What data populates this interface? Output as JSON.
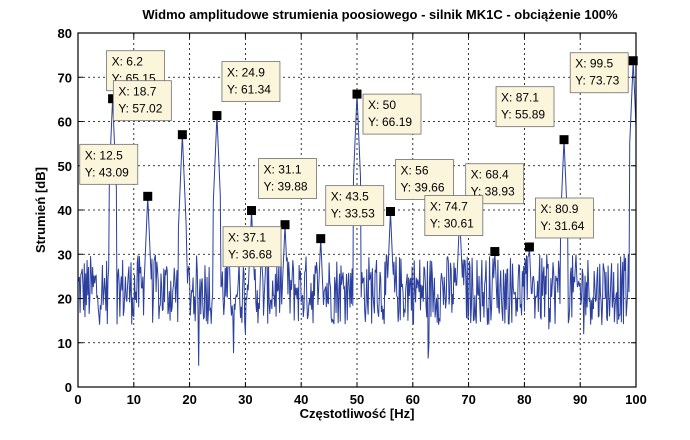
{
  "chart_data": {
    "type": "line",
    "title": "Widmo amplitudowe strumienia poosiowego - silnik MK1C - obciążenie 100%",
    "xlabel": "Częstotliwość [Hz]",
    "ylabel": "Strumień [dB]",
    "xlim": [
      0,
      100
    ],
    "ylim": [
      0,
      80
    ],
    "xticks": [
      0,
      10,
      20,
      30,
      40,
      50,
      60,
      70,
      80,
      90,
      100
    ],
    "yticks": [
      0,
      10,
      20,
      30,
      40,
      50,
      60,
      70,
      80
    ],
    "grid": true,
    "line_color": "#2b3f9e",
    "peaks": [
      {
        "x": 6.2,
        "y": 65.15,
        "xtext": "X: 6.2",
        "ytext": "Y: 65.15"
      },
      {
        "x": 12.5,
        "y": 43.09,
        "xtext": "X: 12.5",
        "ytext": "Y: 43.09"
      },
      {
        "x": 18.7,
        "y": 57.02,
        "xtext": "X: 18.7",
        "ytext": "Y: 57.02"
      },
      {
        "x": 24.9,
        "y": 61.34,
        "xtext": "X: 24.9",
        "ytext": "Y: 61.34"
      },
      {
        "x": 31.1,
        "y": 39.88,
        "xtext": "X: 31.1",
        "ytext": "Y: 39.88"
      },
      {
        "x": 37.1,
        "y": 36.68,
        "xtext": "X: 37.1",
        "ytext": "Y: 36.68"
      },
      {
        "x": 43.5,
        "y": 33.53,
        "xtext": "X: 43.5",
        "ytext": "Y: 33.53"
      },
      {
        "x": 50,
        "y": 66.19,
        "xtext": "X: 50",
        "ytext": "Y: 66.19"
      },
      {
        "x": 56,
        "y": 39.66,
        "xtext": "X: 56",
        "ytext": "Y: 39.66"
      },
      {
        "x": 68.4,
        "y": 38.93,
        "xtext": "X: 68.4",
        "ytext": "Y: 38.93"
      },
      {
        "x": 74.7,
        "y": 30.61,
        "xtext": "X: 74.7",
        "ytext": "Y: 30.61"
      },
      {
        "x": 80.9,
        "y": 31.64,
        "xtext": "X: 80.9",
        "ytext": "Y: 31.64"
      },
      {
        "x": 87.1,
        "y": 55.89,
        "xtext": "X: 87.1",
        "ytext": "Y: 55.89"
      },
      {
        "x": 99.5,
        "y": 73.73,
        "xtext": "X: 99.5",
        "ytext": "Y: 73.73"
      }
    ]
  }
}
